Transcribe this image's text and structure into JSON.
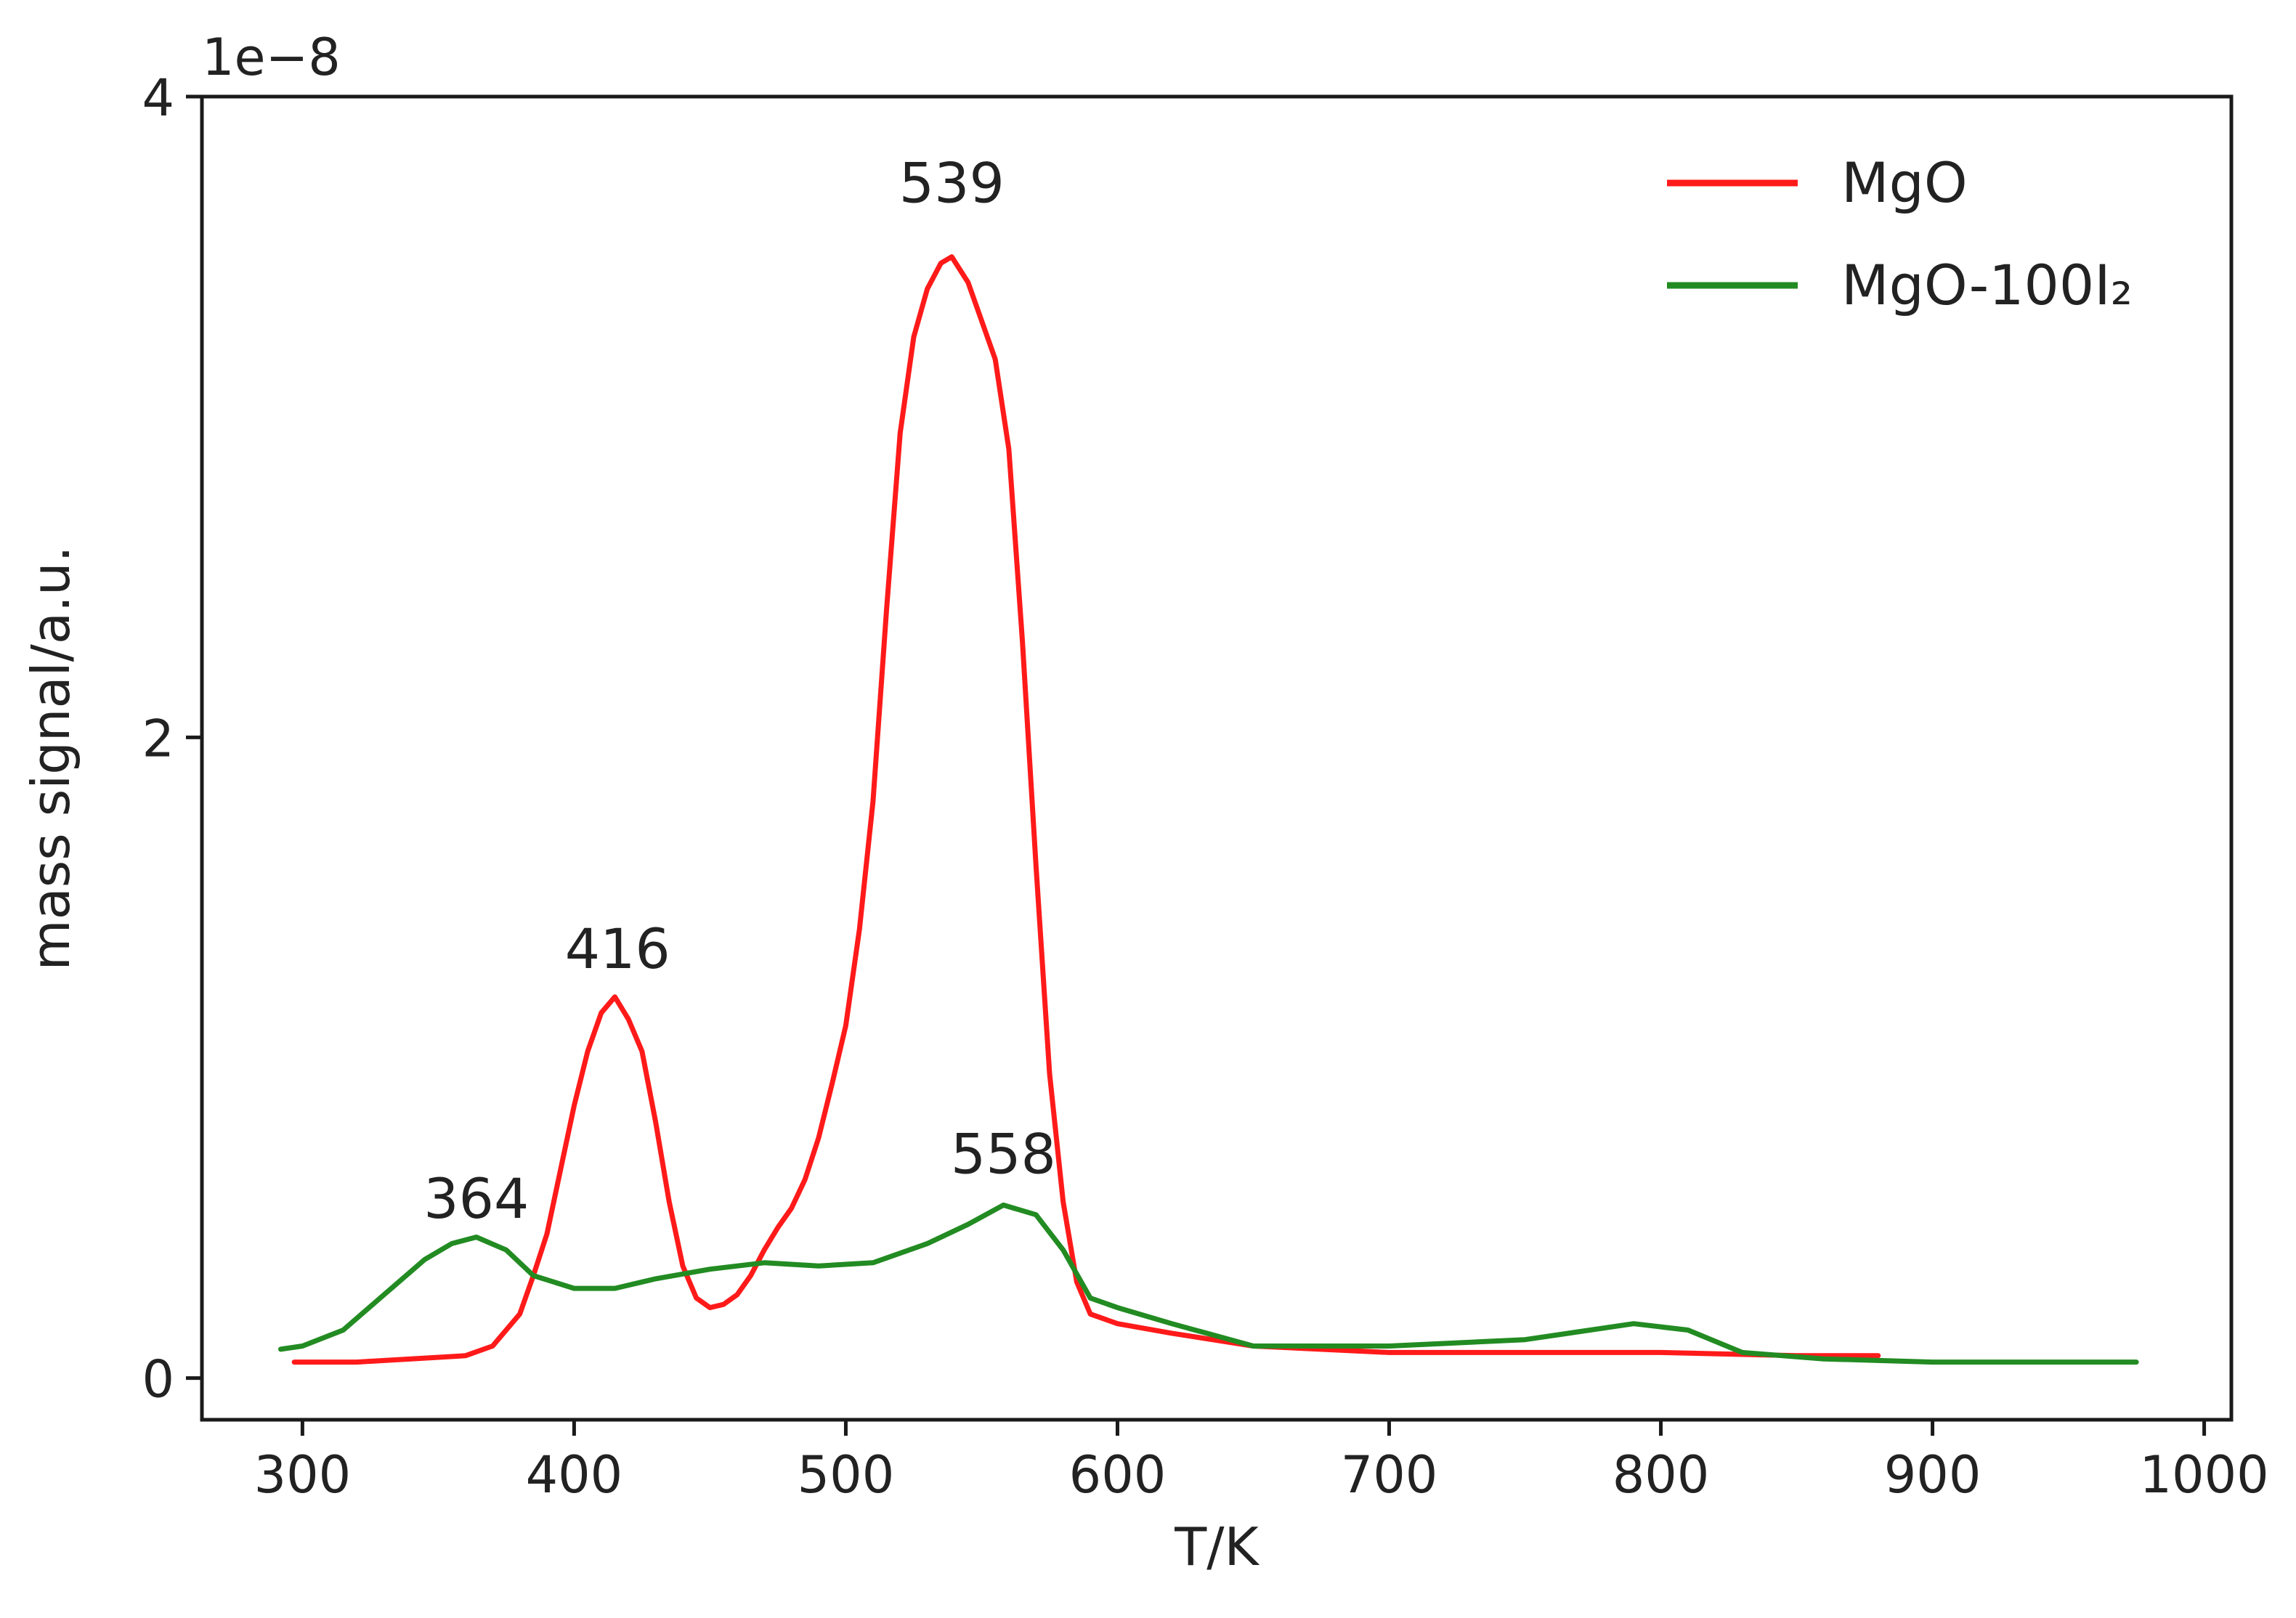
{
  "chart_data": {
    "type": "line",
    "xlabel": "T/K",
    "ylabel": "mass signal/a.u.",
    "y_offset_text": "1e−8",
    "xlim": [
      263,
      1010
    ],
    "ylim": [
      -0.13,
      4.0
    ],
    "x_ticks": [
      300,
      400,
      500,
      600,
      700,
      800,
      900,
      1000
    ],
    "x_tick_labels": [
      "300",
      "400",
      "500",
      "600",
      "700",
      "800",
      "900",
      "1000"
    ],
    "y_ticks": [
      0,
      2,
      4
    ],
    "y_tick_labels": [
      "0",
      "2",
      "4"
    ],
    "legend_position": "top-right",
    "series": [
      {
        "name": "MgO",
        "color": "#ff1a1a",
        "x": [
          297,
          320,
          340,
          360,
          370,
          380,
          385,
          390,
          395,
          400,
          405,
          410,
          415,
          420,
          425,
          430,
          435,
          440,
          445,
          450,
          455,
          460,
          465,
          470,
          475,
          480,
          485,
          490,
          495,
          500,
          505,
          510,
          515,
          520,
          525,
          530,
          535,
          539,
          545,
          550,
          555,
          560,
          565,
          570,
          575,
          580,
          585,
          590,
          600,
          620,
          650,
          700,
          750,
          800,
          850,
          880
        ],
        "y": [
          0.05,
          0.05,
          0.06,
          0.07,
          0.1,
          0.2,
          0.32,
          0.45,
          0.65,
          0.85,
          1.02,
          1.14,
          1.19,
          1.12,
          1.02,
          0.8,
          0.55,
          0.35,
          0.25,
          0.22,
          0.23,
          0.26,
          0.32,
          0.4,
          0.47,
          0.53,
          0.62,
          0.75,
          0.92,
          1.1,
          1.4,
          1.8,
          2.4,
          2.95,
          3.25,
          3.4,
          3.48,
          3.5,
          3.42,
          3.3,
          3.18,
          2.9,
          2.3,
          1.6,
          0.95,
          0.55,
          0.3,
          0.2,
          0.17,
          0.14,
          0.1,
          0.08,
          0.08,
          0.08,
          0.07,
          0.07
        ]
      },
      {
        "name": "MgO-100I₂",
        "color": "#228b22",
        "x": [
          292,
          300,
          315,
          330,
          345,
          355,
          364,
          375,
          385,
          400,
          415,
          430,
          450,
          470,
          490,
          510,
          530,
          545,
          558,
          570,
          580,
          590,
          600,
          620,
          650,
          700,
          750,
          790,
          810,
          830,
          860,
          900,
          975
        ],
        "y": [
          0.09,
          0.1,
          0.15,
          0.26,
          0.37,
          0.42,
          0.44,
          0.4,
          0.32,
          0.28,
          0.28,
          0.31,
          0.34,
          0.36,
          0.35,
          0.36,
          0.42,
          0.48,
          0.54,
          0.51,
          0.4,
          0.25,
          0.22,
          0.17,
          0.1,
          0.1,
          0.12,
          0.17,
          0.15,
          0.08,
          0.06,
          0.05,
          0.05
        ]
      }
    ],
    "annotations": [
      {
        "text": "364",
        "x": 364,
        "y": 0.5
      },
      {
        "text": "416",
        "x": 416,
        "y": 1.28
      },
      {
        "text": "539",
        "x": 539,
        "y": 3.67
      },
      {
        "text": "558",
        "x": 558,
        "y": 0.64
      }
    ]
  }
}
